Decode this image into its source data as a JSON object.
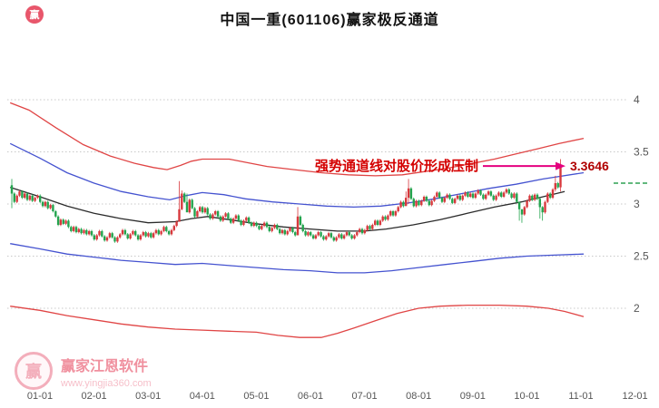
{
  "header": {
    "title": "中国一重(601106)赢家极反通道"
  },
  "watermark": {
    "brand": "赢家江恩软件",
    "url": "www.yingjia360.com",
    "logo_char": "赢",
    "mini_logo_char": "赢"
  },
  "chart_data": {
    "type": "candlestick",
    "title": "中国一重(601106)赢家极反通道",
    "x_axis": {
      "labels": [
        "01-01",
        "02-01",
        "03-01",
        "04-01",
        "05-01",
        "06-01",
        "07-01",
        "08-01",
        "09-01",
        "10-01",
        "11-01",
        "12-01"
      ]
    },
    "y_axis": {
      "ticks": [
        4,
        3.5,
        3,
        2.5,
        2
      ],
      "side": "right",
      "grid": "dotted"
    },
    "annotation": {
      "text": "强势通道线对股价形成压制",
      "price_label": "3.3646",
      "price": 3.3646,
      "green_dash_level": 3.2
    },
    "colors": {
      "up": "#d8383d",
      "down": "#23a44e",
      "grid": "#c8c8c8",
      "axis_text": "#555555",
      "annotation_text": "#d40000",
      "arrow": "#e4007f",
      "price_text": "#b00000",
      "green_dash": "#2fa052"
    },
    "channel_lines": [
      {
        "name": "upper-red",
        "color": "#e04545",
        "points": [
          [
            -0.55,
            3.97
          ],
          [
            -0.2,
            3.9
          ],
          [
            0.3,
            3.73
          ],
          [
            0.8,
            3.57
          ],
          [
            1.3,
            3.46
          ],
          [
            1.75,
            3.39
          ],
          [
            2.1,
            3.35
          ],
          [
            2.35,
            3.33
          ],
          [
            2.6,
            3.37
          ],
          [
            2.8,
            3.41
          ],
          [
            3.0,
            3.43
          ],
          [
            3.5,
            3.43
          ],
          [
            3.8,
            3.4
          ],
          [
            4.2,
            3.36
          ],
          [
            4.7,
            3.33
          ],
          [
            5.2,
            3.3
          ],
          [
            5.7,
            3.28
          ],
          [
            6.2,
            3.27
          ],
          [
            6.7,
            3.28
          ],
          [
            7.1,
            3.31
          ],
          [
            7.5,
            3.34
          ],
          [
            7.9,
            3.38
          ],
          [
            8.4,
            3.43
          ],
          [
            8.8,
            3.48
          ],
          [
            9.2,
            3.53
          ],
          [
            9.6,
            3.58
          ],
          [
            10.05,
            3.63
          ]
        ]
      },
      {
        "name": "upper-blue",
        "color": "#4553d0",
        "points": [
          [
            -0.55,
            3.58
          ],
          [
            0.0,
            3.44
          ],
          [
            0.5,
            3.3
          ],
          [
            1.0,
            3.2
          ],
          [
            1.5,
            3.12
          ],
          [
            2.0,
            3.07
          ],
          [
            2.4,
            3.04
          ],
          [
            2.7,
            3.08
          ],
          [
            3.0,
            3.11
          ],
          [
            3.4,
            3.09
          ],
          [
            3.8,
            3.05
          ],
          [
            4.3,
            3.02
          ],
          [
            4.8,
            3.0
          ],
          [
            5.3,
            2.98
          ],
          [
            5.8,
            2.97
          ],
          [
            6.3,
            2.98
          ],
          [
            6.8,
            3.01
          ],
          [
            7.3,
            3.05
          ],
          [
            7.8,
            3.1
          ],
          [
            8.3,
            3.15
          ],
          [
            8.8,
            3.19
          ],
          [
            9.3,
            3.24
          ],
          [
            10.05,
            3.3
          ]
        ]
      },
      {
        "name": "middle-black",
        "color": "#2b2b2b",
        "points": [
          [
            -0.55,
            3.16
          ],
          [
            0.0,
            3.07
          ],
          [
            0.5,
            2.98
          ],
          [
            1.0,
            2.91
          ],
          [
            1.5,
            2.86
          ],
          [
            2.0,
            2.82
          ],
          [
            2.5,
            2.83
          ],
          [
            2.8,
            2.86
          ],
          [
            3.1,
            2.88
          ],
          [
            3.5,
            2.85
          ],
          [
            4.0,
            2.81
          ],
          [
            4.5,
            2.78
          ],
          [
            5.0,
            2.76
          ],
          [
            5.5,
            2.74
          ],
          [
            6.0,
            2.74
          ],
          [
            6.4,
            2.76
          ],
          [
            6.9,
            2.8
          ],
          [
            7.4,
            2.85
          ],
          [
            7.9,
            2.91
          ],
          [
            8.4,
            2.97
          ],
          [
            8.9,
            3.02
          ],
          [
            9.3,
            3.07
          ],
          [
            9.7,
            3.12
          ]
        ]
      },
      {
        "name": "lower-blue",
        "color": "#4553d0",
        "points": [
          [
            -0.55,
            2.62
          ],
          [
            0.0,
            2.57
          ],
          [
            0.5,
            2.52
          ],
          [
            1.0,
            2.49
          ],
          [
            1.5,
            2.46
          ],
          [
            2.0,
            2.44
          ],
          [
            2.5,
            2.42
          ],
          [
            3.0,
            2.43
          ],
          [
            3.5,
            2.41
          ],
          [
            4.0,
            2.39
          ],
          [
            4.5,
            2.37
          ],
          [
            5.0,
            2.36
          ],
          [
            5.5,
            2.34
          ],
          [
            6.0,
            2.34
          ],
          [
            6.5,
            2.36
          ],
          [
            7.0,
            2.39
          ],
          [
            7.5,
            2.42
          ],
          [
            8.0,
            2.45
          ],
          [
            8.5,
            2.48
          ],
          [
            9.0,
            2.5
          ],
          [
            9.5,
            2.51
          ],
          [
            10.05,
            2.52
          ]
        ]
      },
      {
        "name": "lower-red",
        "color": "#e04545",
        "points": [
          [
            -0.55,
            2.02
          ],
          [
            0.0,
            1.98
          ],
          [
            0.5,
            1.93
          ],
          [
            1.0,
            1.89
          ],
          [
            1.5,
            1.85
          ],
          [
            2.0,
            1.82
          ],
          [
            2.5,
            1.8
          ],
          [
            3.0,
            1.79
          ],
          [
            3.5,
            1.78
          ],
          [
            4.0,
            1.77
          ],
          [
            4.4,
            1.74
          ],
          [
            4.8,
            1.72
          ],
          [
            5.2,
            1.72
          ],
          [
            5.5,
            1.76
          ],
          [
            5.8,
            1.81
          ],
          [
            6.2,
            1.88
          ],
          [
            6.6,
            1.95
          ],
          [
            7.0,
            2.0
          ],
          [
            7.4,
            2.02
          ],
          [
            7.9,
            2.03
          ],
          [
            8.5,
            2.03
          ],
          [
            9.0,
            2.02
          ],
          [
            9.4,
            2.0
          ],
          [
            9.7,
            1.97
          ],
          [
            10.05,
            1.92
          ]
        ]
      }
    ],
    "candles": {
      "start_month": -0.52,
      "per_month": 21,
      "first_open": 3.18,
      "wick_pad": 0.012,
      "closes": [
        3.1,
        3.02,
        3.08,
        3.12,
        3.06,
        3.1,
        3.04,
        3.08,
        3.03,
        3.06,
        3.08,
        3.02,
        2.98,
        3.02,
        2.96,
        2.99,
        2.93,
        2.88,
        2.8,
        2.85,
        2.81,
        2.84,
        2.78,
        2.74,
        2.78,
        2.73,
        2.76,
        2.72,
        2.75,
        2.71,
        2.74,
        2.7,
        2.66,
        2.7,
        2.74,
        2.69,
        2.65,
        2.68,
        2.72,
        2.68,
        2.64,
        2.68,
        2.71,
        2.75,
        2.71,
        2.67,
        2.71,
        2.74,
        2.7,
        2.66,
        2.7,
        2.73,
        2.69,
        2.72,
        2.68,
        2.72,
        2.75,
        2.71,
        2.74,
        2.78,
        2.74,
        2.71,
        2.75,
        2.79,
        2.83,
        2.95,
        3.1,
        3.02,
        2.92,
        3.04,
        2.96,
        2.88,
        2.93,
        2.97,
        2.92,
        2.96,
        2.9,
        2.86,
        2.9,
        2.93,
        2.88,
        2.84,
        2.88,
        2.91,
        2.86,
        2.82,
        2.86,
        2.89,
        2.84,
        2.8,
        2.84,
        2.87,
        2.82,
        2.79,
        2.82,
        2.79,
        2.76,
        2.79,
        2.82,
        2.78,
        2.74,
        2.77,
        2.8,
        2.76,
        2.72,
        2.75,
        2.71,
        2.74,
        2.77,
        2.73,
        2.7,
        2.88,
        2.8,
        2.74,
        2.7,
        2.73,
        2.7,
        2.67,
        2.7,
        2.73,
        2.69,
        2.66,
        2.69,
        2.72,
        2.68,
        2.65,
        2.68,
        2.71,
        2.67,
        2.7,
        2.73,
        2.7,
        2.67,
        2.7,
        2.73,
        2.76,
        2.72,
        2.75,
        2.79,
        2.76,
        2.8,
        2.84,
        2.8,
        2.84,
        2.88,
        2.85,
        2.89,
        2.93,
        2.89,
        2.93,
        2.97,
        3.02,
        2.98,
        3.06,
        3.15,
        3.05,
        2.98,
        3.03,
        2.99,
        3.03,
        3.07,
        3.03,
        2.99,
        3.03,
        3.07,
        3.11,
        3.06,
        3.02,
        3.06,
        3.09,
        3.05,
        3.01,
        3.05,
        3.08,
        3.04,
        3.08,
        3.11,
        3.07,
        3.1,
        3.06,
        3.1,
        3.13,
        3.09,
        3.05,
        3.09,
        3.12,
        3.08,
        3.04,
        3.08,
        3.11,
        3.07,
        3.11,
        3.14,
        3.1,
        3.06,
        3.1,
        3.02,
        2.95,
        2.9,
        2.97,
        3.03,
        3.08,
        3.04,
        3.09,
        3.05,
        2.97,
        2.92,
        3.02,
        3.1,
        3.06,
        3.14,
        3.2,
        3.16,
        3.36
      ],
      "wick_overrides": {
        "0": [
          3.24,
          2.96
        ],
        "65": [
          3.22,
          2.92
        ],
        "66": [
          3.13,
          2.94
        ],
        "68": [
          3.1,
          2.93
        ],
        "111": [
          2.97,
          2.7
        ],
        "153": [
          3.12,
          3.0
        ],
        "154": [
          3.24,
          3.0
        ],
        "197": [
          3.0,
          2.84
        ],
        "198": [
          2.95,
          2.82
        ],
        "205": [
          3.06,
          2.86
        ],
        "206": [
          2.98,
          2.84
        ],
        "211": [
          3.27,
          3.12
        ],
        "213": [
          3.43,
          3.12
        ]
      }
    }
  }
}
